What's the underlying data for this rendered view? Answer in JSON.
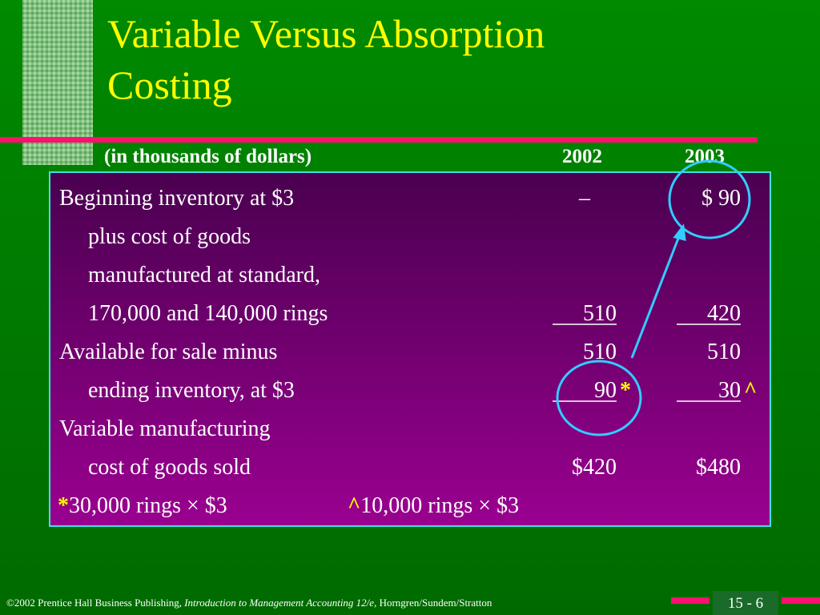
{
  "title": "Variable Versus Absorption Costing",
  "header": {
    "label": "(in thousands of dollars)",
    "columns": [
      "2002",
      "2003"
    ]
  },
  "rows": [
    {
      "label": "Beginning inventory at $3",
      "values": [
        "–",
        "$  90"
      ]
    },
    {
      "label": "plus cost of goods",
      "indent": true
    },
    {
      "label": "manufactured at standard,",
      "indent": true
    },
    {
      "label": "170,000 and 140,000 rings",
      "indent": true,
      "values": [
        "510",
        "420"
      ],
      "underline": true
    },
    {
      "label": "Available for sale minus",
      "values": [
        "510",
        "510"
      ]
    },
    {
      "label": "ending inventory, at $3",
      "indent": true,
      "values": [
        "90",
        "30"
      ],
      "notes": [
        "*",
        "^"
      ],
      "underline": true
    },
    {
      "label": "Variable manufacturing"
    },
    {
      "label": "cost of goods sold",
      "indent": true,
      "values": [
        "$420",
        "$480"
      ]
    }
  ],
  "footnotes": [
    {
      "mark": "*",
      "text": "30,000 rings × $3"
    },
    {
      "mark": "^",
      "text": "10,000 rings × $3"
    }
  ],
  "footer": {
    "copyright": "©2002 Prentice Hall Business Publishing,",
    "book": "Introduction to Management Accounting 12/e,",
    "authors": "Horngren/Sundem/Stratton",
    "page": "15 - 6"
  }
}
